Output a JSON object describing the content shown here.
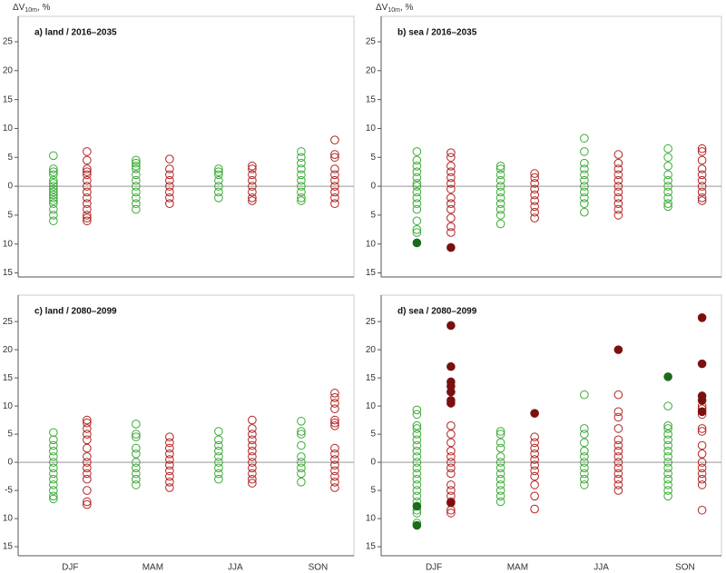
{
  "chart_data": [
    {
      "type": "scatter",
      "title": "a) land / 2016–2035",
      "y_label": [
        "ΔV",
        "10m",
        ", %"
      ],
      "ylim": [
        -15.7,
        29.4
      ],
      "yticks": [
        25,
        20,
        15,
        10,
        5,
        0,
        {
          "value": -5,
          "label": "5"
        },
        {
          "value": -10,
          "label": "10"
        },
        {
          "value": -15,
          "label": "15"
        }
      ],
      "series": [
        {
          "color": "#3aaa35",
          "side": "left",
          "filled": false,
          "values": [
            [
              5.3,
              3,
              2.5,
              2,
              1,
              0.5,
              0,
              -0.5,
              -1,
              -1.5,
              -2,
              -2.5,
              -3,
              -4,
              -5,
              -6
            ],
            [
              4.5,
              4,
              3.5,
              3,
              2,
              1,
              0,
              -1,
              -2,
              -3,
              -4
            ],
            [
              3,
              2.5,
              2,
              1,
              0,
              -1,
              -2
            ],
            [
              6,
              5,
              4,
              3,
              2,
              1,
              0,
              -1,
              -2,
              -2.5
            ]
          ]
        },
        {
          "color": "#b22222",
          "side": "right",
          "filled": false,
          "values": [
            [
              6,
              4.5,
              3,
              2.5,
              2,
              1,
              0,
              -1,
              -2,
              -3,
              -4,
              -5,
              -5.5,
              -6
            ],
            [
              4.7,
              3,
              2,
              1,
              0,
              -1,
              -2,
              -3
            ],
            [
              3.5,
              3,
              2,
              1,
              0,
              -1,
              -2,
              -2.5
            ],
            [
              8,
              5.5,
              5,
              3,
              2,
              1,
              0,
              -1,
              -2,
              -3
            ]
          ]
        }
      ]
    },
    {
      "type": "scatter",
      "title": "b) sea / 2016–2035",
      "y_label": [
        "ΔV",
        "10m",
        ", %"
      ],
      "ylim": [
        -15.7,
        29.4
      ],
      "yticks": [
        25,
        20,
        15,
        10,
        5,
        0,
        {
          "value": -5,
          "label": "5"
        },
        {
          "value": -10,
          "label": "10"
        },
        {
          "value": -15,
          "label": "15"
        }
      ],
      "series": [
        {
          "color": "#3aaa35",
          "side": "left",
          "filled": false,
          "values": [
            [
              6,
              4.5,
              3.5,
              2.5,
              1.5,
              0.5,
              0,
              -1,
              -2,
              -3,
              -4,
              -6,
              -7.5,
              -8
            ],
            [
              3.5,
              3,
              2,
              1,
              0,
              -1,
              -2,
              -3,
              -4,
              -5,
              -6.5
            ],
            [
              8.3,
              6,
              4,
              3,
              2,
              1,
              0,
              -1,
              -2,
              -3,
              -4.5
            ],
            [
              6.5,
              5,
              3.5,
              2,
              1,
              0,
              -1,
              -2,
              -3,
              -3.5
            ]
          ]
        },
        {
          "color": "#1a6b1a",
          "side": "left",
          "filled": true,
          "values": [
            [
              -9.8
            ],
            [],
            [],
            []
          ]
        },
        {
          "color": "#b22222",
          "side": "right",
          "filled": false,
          "values": [
            [
              5.8,
              5,
              3.5,
              2.5,
              1.5,
              0.5,
              -0.5,
              -2,
              -3,
              -4,
              -5.5,
              -7,
              -8
            ],
            [
              2.2,
              1.5,
              0.5,
              -0.5,
              -1.5,
              -2.5,
              -3.5,
              -4.5,
              -5.5
            ],
            [
              5.5,
              4,
              3,
              2,
              1,
              0,
              -1,
              -2,
              -3,
              -4,
              -5
            ],
            [
              6.5,
              6,
              4.5,
              3,
              2,
              1,
              0,
              -1,
              -2,
              -2.5
            ]
          ]
        },
        {
          "color": "#7a1010",
          "side": "right",
          "filled": true,
          "values": [
            [
              -10.6
            ],
            [],
            [],
            []
          ]
        }
      ]
    },
    {
      "type": "scatter",
      "title": "c) land / 2080–2099",
      "categories": [
        "DJF",
        "MAM",
        "JJA",
        "SON"
      ],
      "ylim": [
        -16.6,
        29.7
      ],
      "yticks": [
        25,
        20,
        15,
        10,
        5,
        0,
        -5,
        {
          "value": -10,
          "label": "10"
        },
        {
          "value": -15,
          "label": "15"
        }
      ],
      "series": [
        {
          "color": "#3aaa35",
          "side": "left",
          "filled": false,
          "values": [
            [
              5.3,
              4,
              3,
              2,
              1,
              0,
              -1,
              -2,
              -3,
              -4,
              -5,
              -6,
              -6.5
            ],
            [
              6.8,
              5,
              4.5,
              2.5,
              1.5,
              0,
              -1,
              -2,
              -3,
              -4
            ],
            [
              5.5,
              4,
              3,
              2,
              1,
              0,
              -1,
              -2,
              -3
            ],
            [
              7.3,
              5.5,
              5,
              3,
              1,
              0,
              -1,
              -2,
              -3.5
            ]
          ]
        },
        {
          "color": "#b22222",
          "side": "right",
          "filled": false,
          "values": [
            [
              7.5,
              7,
              6,
              5,
              4,
              2.5,
              1,
              0,
              -1,
              -2,
              -3,
              -5,
              -7,
              -7.5
            ],
            [
              4.5,
              3.5,
              2.5,
              1.5,
              0.5,
              -0.5,
              -1.5,
              -2.5,
              -3.5,
              -4.5
            ],
            [
              7.5,
              6,
              5,
              4,
              3,
              2,
              1,
              0,
              -1,
              -2,
              -3,
              -3.7
            ],
            [
              12.3,
              11.5,
              10.5,
              9.5,
              7.5,
              7,
              6.5,
              2.5,
              1.5,
              0.5,
              -0.5,
              -1.5,
              -2.5,
              -3.5,
              -4.5
            ]
          ]
        }
      ]
    },
    {
      "type": "scatter",
      "title": "d) sea / 2080–2099",
      "categories": [
        "DJF",
        "MAM",
        "JJA",
        "SON"
      ],
      "ylim": [
        -16.6,
        29.7
      ],
      "yticks": [
        25,
        20,
        15,
        10,
        5,
        0,
        {
          "value": -5,
          "label": "5"
        },
        {
          "value": -10,
          "label": "10"
        },
        {
          "value": -15,
          "label": "15"
        }
      ],
      "series": [
        {
          "color": "#3aaa35",
          "side": "left",
          "filled": false,
          "values": [
            [
              9.3,
              8.5,
              6.5,
              6,
              5,
              4,
              3,
              2,
              1,
              0,
              -1,
              -2,
              -3,
              -4,
              -5,
              -6,
              -7,
              -8.5,
              -9,
              -10.8
            ],
            [
              5.5,
              5,
              3.5,
              2.5,
              1,
              0,
              -1,
              -2,
              -3,
              -4,
              -5,
              -6,
              -7
            ],
            [
              12,
              6,
              5,
              3.5,
              2,
              1,
              0,
              -1,
              -2,
              -3,
              -4
            ],
            [
              10,
              6.5,
              6,
              5,
              4,
              3,
              2,
              1,
              0,
              -1,
              -2,
              -3,
              -4,
              -5,
              -6
            ]
          ]
        },
        {
          "color": "#1a6b1a",
          "side": "left",
          "filled": true,
          "values": [
            [
              -7.8,
              -11.2
            ],
            [],
            [],
            [
              15.2
            ]
          ]
        },
        {
          "color": "#b22222",
          "side": "right",
          "filled": false,
          "values": [
            [
              6.5,
              5,
              3.5,
              2,
              1,
              0,
              -1,
              -2,
              -4,
              -5,
              -6,
              -7,
              -8.5,
              -9
            ],
            [
              4.5,
              3.5,
              2.5,
              1.5,
              0.5,
              -0.5,
              -1.5,
              -2.5,
              -4,
              -6,
              -8.3
            ],
            [
              12,
              9,
              8,
              6,
              4,
              3,
              2,
              1,
              0,
              -1,
              -2,
              -3,
              -4,
              -5
            ],
            [
              10,
              9.5,
              8.5,
              6,
              5.5,
              3,
              1.5,
              0,
              -1,
              -2,
              -3,
              -4,
              -8.5
            ]
          ]
        },
        {
          "color": "#7a1010",
          "side": "right",
          "filled": true,
          "values": [
            [
              24.3,
              17,
              14.3,
              13.5,
              12.5,
              11,
              10.5,
              -7.2
            ],
            [
              8.7
            ],
            [
              20
            ],
            [
              25.7,
              17.5,
              11.8,
              11,
              9
            ]
          ]
        }
      ]
    }
  ]
}
